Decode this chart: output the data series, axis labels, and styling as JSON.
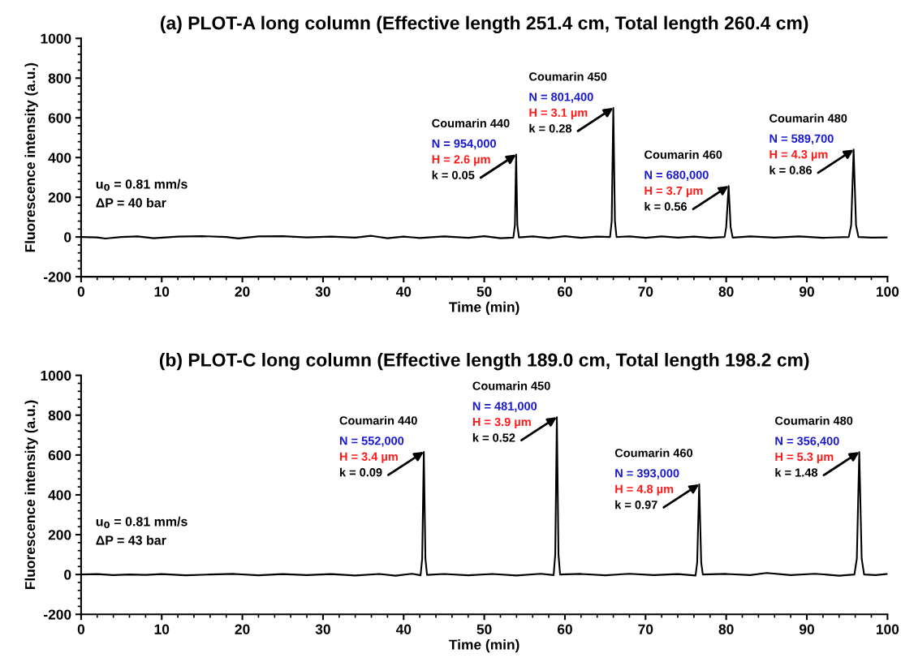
{
  "chart_data": [
    {
      "type": "line",
      "title": "(a) PLOT-A long column (Effective length 251.4 cm, Total length 260.4 cm)",
      "xlabel": "Time (min)",
      "ylabel": "Fluorescence intensity (a.u.)",
      "x": [
        0,
        2,
        3,
        5,
        7,
        9,
        12,
        15,
        18,
        19.5,
        22,
        25,
        28,
        31,
        34,
        36,
        38,
        40,
        42,
        45,
        48,
        50,
        52,
        53.6,
        53.8,
        53.95,
        54.1,
        54.3,
        56,
        58,
        60,
        62,
        64,
        65.6,
        65.8,
        66.0,
        66.2,
        66.4,
        68,
        70,
        72,
        74,
        76,
        78,
        79.8,
        80.0,
        80.3,
        80.55,
        80.8,
        83,
        86,
        89,
        92,
        95.2,
        95.5,
        95.8,
        96.1,
        96.4,
        98,
        100
      ],
      "series": [
        {
          "color": "#000000",
          "values": [
            0,
            -2,
            -8,
            0,
            3,
            -6,
            2,
            4,
            0,
            -7,
            3,
            4,
            -2,
            2,
            -3,
            6,
            -6,
            2,
            -5,
            3,
            -4,
            4,
            -6,
            -3,
            60,
            415,
            60,
            -2,
            3,
            -5,
            4,
            -4,
            2,
            0,
            80,
            650,
            80,
            0,
            3,
            -4,
            3,
            -3,
            2,
            -4,
            0,
            50,
            257,
            50,
            -3,
            3,
            -3,
            3,
            -4,
            0,
            60,
            440,
            60,
            0,
            -3,
            -2
          ]
        }
      ],
      "xlim": [
        0,
        100
      ],
      "ylim": [
        -200,
        1000
      ],
      "xticks": [
        0,
        10,
        20,
        30,
        40,
        50,
        60,
        70,
        80,
        90,
        100
      ],
      "yticks": [
        -200,
        0,
        200,
        400,
        600,
        800,
        1000
      ],
      "annotations": [
        "Coumarin 440",
        "N = 954,000",
        "H = 2.6 µm",
        {
          "text": "k = 0.05",
          "x": 53.95,
          "y": 415
        },
        "Coumarin 450",
        "N = 801,400",
        "H = 3.1 µm",
        {
          "text": "k = 0.28",
          "x": 66.0,
          "y": 650
        },
        "Coumarin 460",
        "N = 680,000",
        "H = 3.7 µm",
        {
          "text": "k = 0.56",
          "x": 80.3,
          "y": 257
        },
        "Coumarin 480",
        "N = 589,700",
        "H = 4.3 µm",
        {
          "text": "k = 0.86",
          "x": 95.8,
          "y": 440
        },
        "u$_{0}$ = 0.81 mm/s\nΔP = 40 bar"
      ]
    },
    {
      "type": "line",
      "title": "(b) PLOT-C long column (Effective length 189.0 cm, Total length 198.2 cm)",
      "xlabel": "Time (min)",
      "ylabel": "Fluorescence intensity (a.u.)",
      "x": [
        0,
        2,
        4,
        6,
        8,
        10,
        13,
        16,
        19,
        22,
        25,
        28,
        31,
        34,
        37,
        39,
        41,
        42.1,
        42.3,
        42.5,
        42.7,
        42.9,
        45,
        48,
        51,
        54,
        57,
        58.6,
        58.8,
        59.0,
        59.2,
        59.4,
        62,
        65,
        68,
        71,
        74,
        76.2,
        76.4,
        76.65,
        76.9,
        77.1,
        80,
        83,
        85,
        88,
        91,
        94,
        95.9,
        96.2,
        96.5,
        96.8,
        97.1,
        98.5,
        100
      ],
      "series": [
        {
          "color": "#000000",
          "values": [
            0,
            2,
            -3,
            0,
            -2,
            2,
            -4,
            0,
            3,
            -4,
            2,
            -3,
            2,
            -5,
            3,
            -6,
            4,
            -4,
            80,
            616,
            80,
            -2,
            3,
            -4,
            3,
            -5,
            4,
            -3,
            100,
            790,
            100,
            0,
            3,
            -4,
            4,
            -3,
            2,
            -5,
            60,
            453,
            60,
            0,
            3,
            -3,
            8,
            -3,
            4,
            -6,
            0,
            80,
            615,
            80,
            0,
            -3,
            3
          ]
        }
      ],
      "xlim": [
        0,
        100
      ],
      "ylim": [
        -200,
        1000
      ],
      "xticks": [
        0,
        10,
        20,
        30,
        40,
        50,
        60,
        70,
        80,
        90,
        100
      ],
      "yticks": [
        -200,
        0,
        200,
        400,
        600,
        800,
        1000
      ],
      "annotations": [
        "Coumarin 440",
        "N = 552,000",
        "H = 3.4 µm",
        {
          "text": "k = 0.09",
          "x": 42.5,
          "y": 616
        },
        "Coumarin 450",
        "N = 481,000",
        "H = 3.9 µm",
        {
          "text": "k = 0.52",
          "x": 59.0,
          "y": 790
        },
        "Coumarin 460",
        "N = 393,000",
        "H = 4.8 µm",
        {
          "text": "k = 0.97",
          "x": 76.65,
          "y": 453
        },
        "Coumarin 480",
        "N = 356,400",
        "H = 5.3 µm",
        {
          "text": "k = 1.48",
          "x": 96.5,
          "y": 615
        },
        "u$_{0}$ = 0.81 mm/s\nΔP = 43 bar"
      ]
    }
  ]
}
